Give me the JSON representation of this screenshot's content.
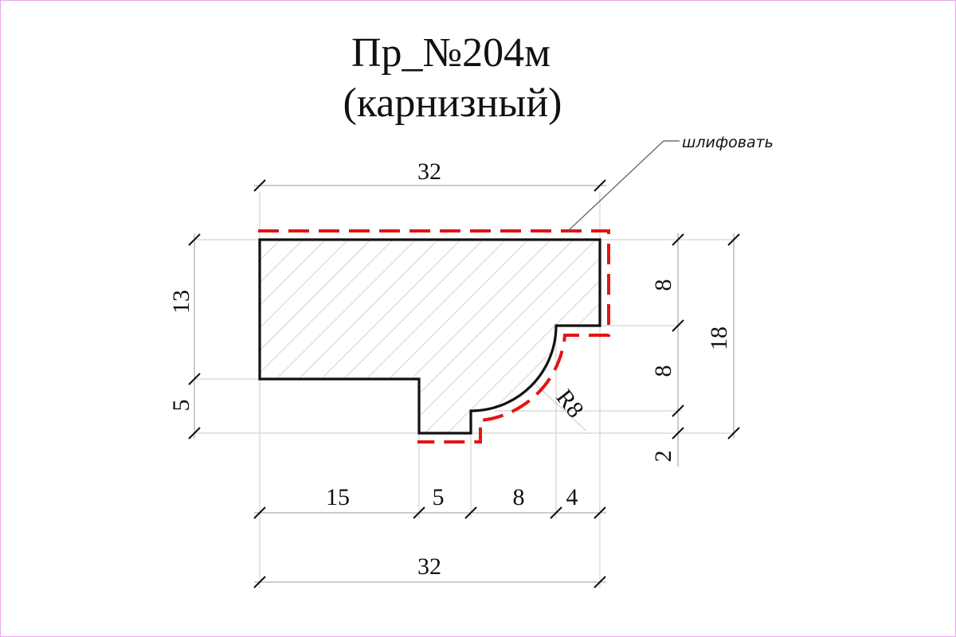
{
  "title": {
    "line1": "Пр_№204м",
    "line2": "(карнизный)"
  },
  "annotation": {
    "sanding_note": "шлифовать"
  },
  "dimensions": {
    "top_width": "32",
    "bottom_total_width": "32",
    "left_upper_height": "13",
    "left_lower_height": "5",
    "right_upper": "8",
    "right_middle": "8",
    "right_lower": "2",
    "right_total": "18",
    "bottom_seg_1": "15",
    "bottom_seg_2": "5",
    "bottom_seg_3": "8",
    "bottom_seg_4": "4",
    "radius": "R8"
  },
  "colors": {
    "outline": "#111111",
    "sanding_line": "#e41414",
    "hatch": "#b5b5b5",
    "frame": "#e6a8e6"
  }
}
